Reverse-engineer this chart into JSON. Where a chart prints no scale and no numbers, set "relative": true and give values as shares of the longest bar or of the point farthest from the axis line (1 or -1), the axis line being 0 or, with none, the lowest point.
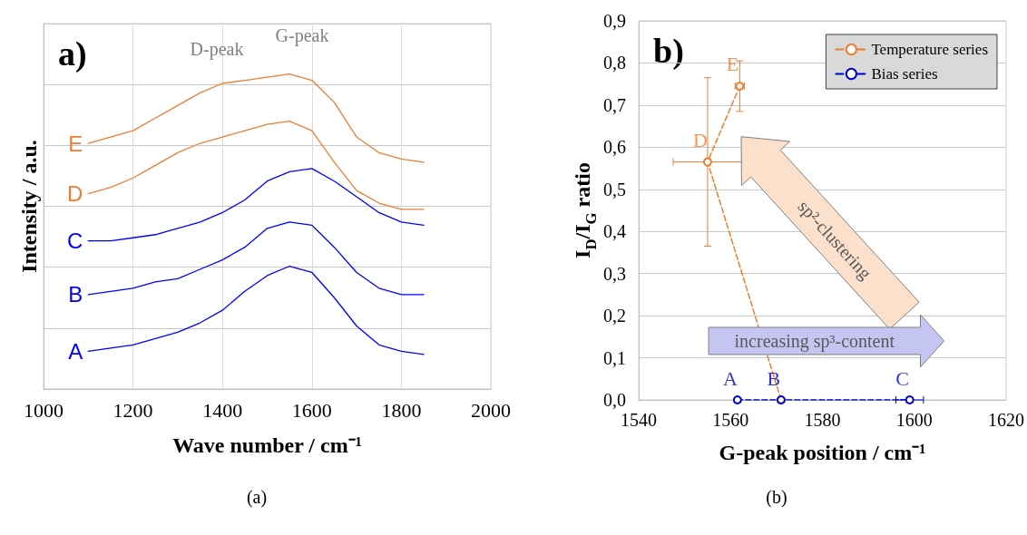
{
  "chart_data": [
    {
      "type": "line",
      "relative": true,
      "grid": true,
      "xlabel": "Wave number / cm⁻¹",
      "ylabel": "Intensity / a.u.",
      "xlim": [
        1000,
        2000
      ],
      "xticks": [
        1000,
        1200,
        1400,
        1600,
        1800,
        2000
      ],
      "x": [
        1100,
        1150,
        1200,
        1250,
        1300,
        1350,
        1400,
        1450,
        1500,
        1550,
        1600,
        1650,
        1700,
        1750,
        1800,
        1850
      ],
      "annotations": [
        "a)",
        "D-peak",
        "G-peak",
        "(a)"
      ],
      "series": [
        {
          "name": "A",
          "color": "#0000ff",
          "values": [
            0.12,
            0.13,
            0.14,
            0.16,
            0.18,
            0.21,
            0.25,
            0.31,
            0.36,
            0.39,
            0.37,
            0.29,
            0.2,
            0.14,
            0.12,
            0.11
          ]
        },
        {
          "name": "B",
          "color": "#0000ff",
          "values": [
            0.3,
            0.31,
            0.32,
            0.34,
            0.35,
            0.38,
            0.41,
            0.45,
            0.51,
            0.53,
            0.52,
            0.45,
            0.37,
            0.32,
            0.3,
            0.3
          ]
        },
        {
          "name": "C",
          "color": "#0000ff",
          "values": [
            0.47,
            0.47,
            0.48,
            0.49,
            0.51,
            0.53,
            0.56,
            0.6,
            0.66,
            0.69,
            0.7,
            0.66,
            0.61,
            0.56,
            0.53,
            0.52
          ]
        },
        {
          "name": "D",
          "color": "#ed7d31",
          "values": [
            0.62,
            0.64,
            0.67,
            0.71,
            0.75,
            0.78,
            0.8,
            0.82,
            0.84,
            0.85,
            0.82,
            0.72,
            0.63,
            0.59,
            0.57,
            0.57
          ]
        },
        {
          "name": "E",
          "color": "#ed7d31",
          "values": [
            0.78,
            0.8,
            0.82,
            0.86,
            0.9,
            0.94,
            0.97,
            0.98,
            0.99,
            1.0,
            0.98,
            0.91,
            0.8,
            0.75,
            0.73,
            0.72
          ]
        }
      ]
    },
    {
      "type": "line",
      "marker": "circle",
      "line_style": "dashed",
      "grid": "y",
      "legend": "top right",
      "xlabel": "G-peak position / cm⁻¹",
      "ylabel": "I$_{D}$/I$_{G}$ ratio",
      "xlim": [
        1540,
        1620
      ],
      "xticks": [
        1540,
        1560,
        1580,
        1600,
        1620
      ],
      "ylim": [
        0,
        0.9
      ],
      "yticks": [
        {
          "value": 0,
          "label": "0,0"
        },
        {
          "value": 0.1,
          "label": "0,1"
        },
        {
          "value": 0.2,
          "label": "0,2"
        },
        {
          "value": 0.3,
          "label": "0,3"
        },
        {
          "value": 0.4,
          "label": "0,4"
        },
        {
          "value": 0.5,
          "label": "0,5"
        },
        {
          "value": 0.6,
          "label": "0,6"
        },
        {
          "value": 0.7,
          "label": "0,7"
        },
        {
          "value": 0.8,
          "label": "0,8"
        },
        {
          "value": 0.9,
          "label": "0,9"
        }
      ],
      "annotations": [
        "b)",
        "sp²-clustering",
        "increasing sp³-content",
        "(b)",
        {
          "text": "A",
          "x": 1561.5,
          "y": 0
        },
        {
          "text": "B",
          "x": 1571,
          "y": 0
        },
        {
          "text": "C",
          "x": 1599,
          "y": 0
        },
        {
          "text": "D",
          "x": 1555,
          "y": 0.565
        },
        {
          "text": "E",
          "x": 1562,
          "y": 0.745
        }
      ],
      "series": [
        {
          "name": "Temperature series",
          "color": "#ed7d31",
          "x": [
            1571,
            1555,
            1562
          ],
          "values": [
            0,
            0.565,
            0.745
          ],
          "errors": [
            null,
            0.2,
            0.06
          ],
          "xerrors": [
            null,
            7.5,
            1
          ]
        },
        {
          "name": "Bias series",
          "color": "#0000cc",
          "x": [
            1561.5,
            1571,
            1599
          ],
          "values": [
            0,
            0,
            0
          ],
          "xerrors": [
            null,
            null,
            3
          ]
        }
      ]
    }
  ]
}
